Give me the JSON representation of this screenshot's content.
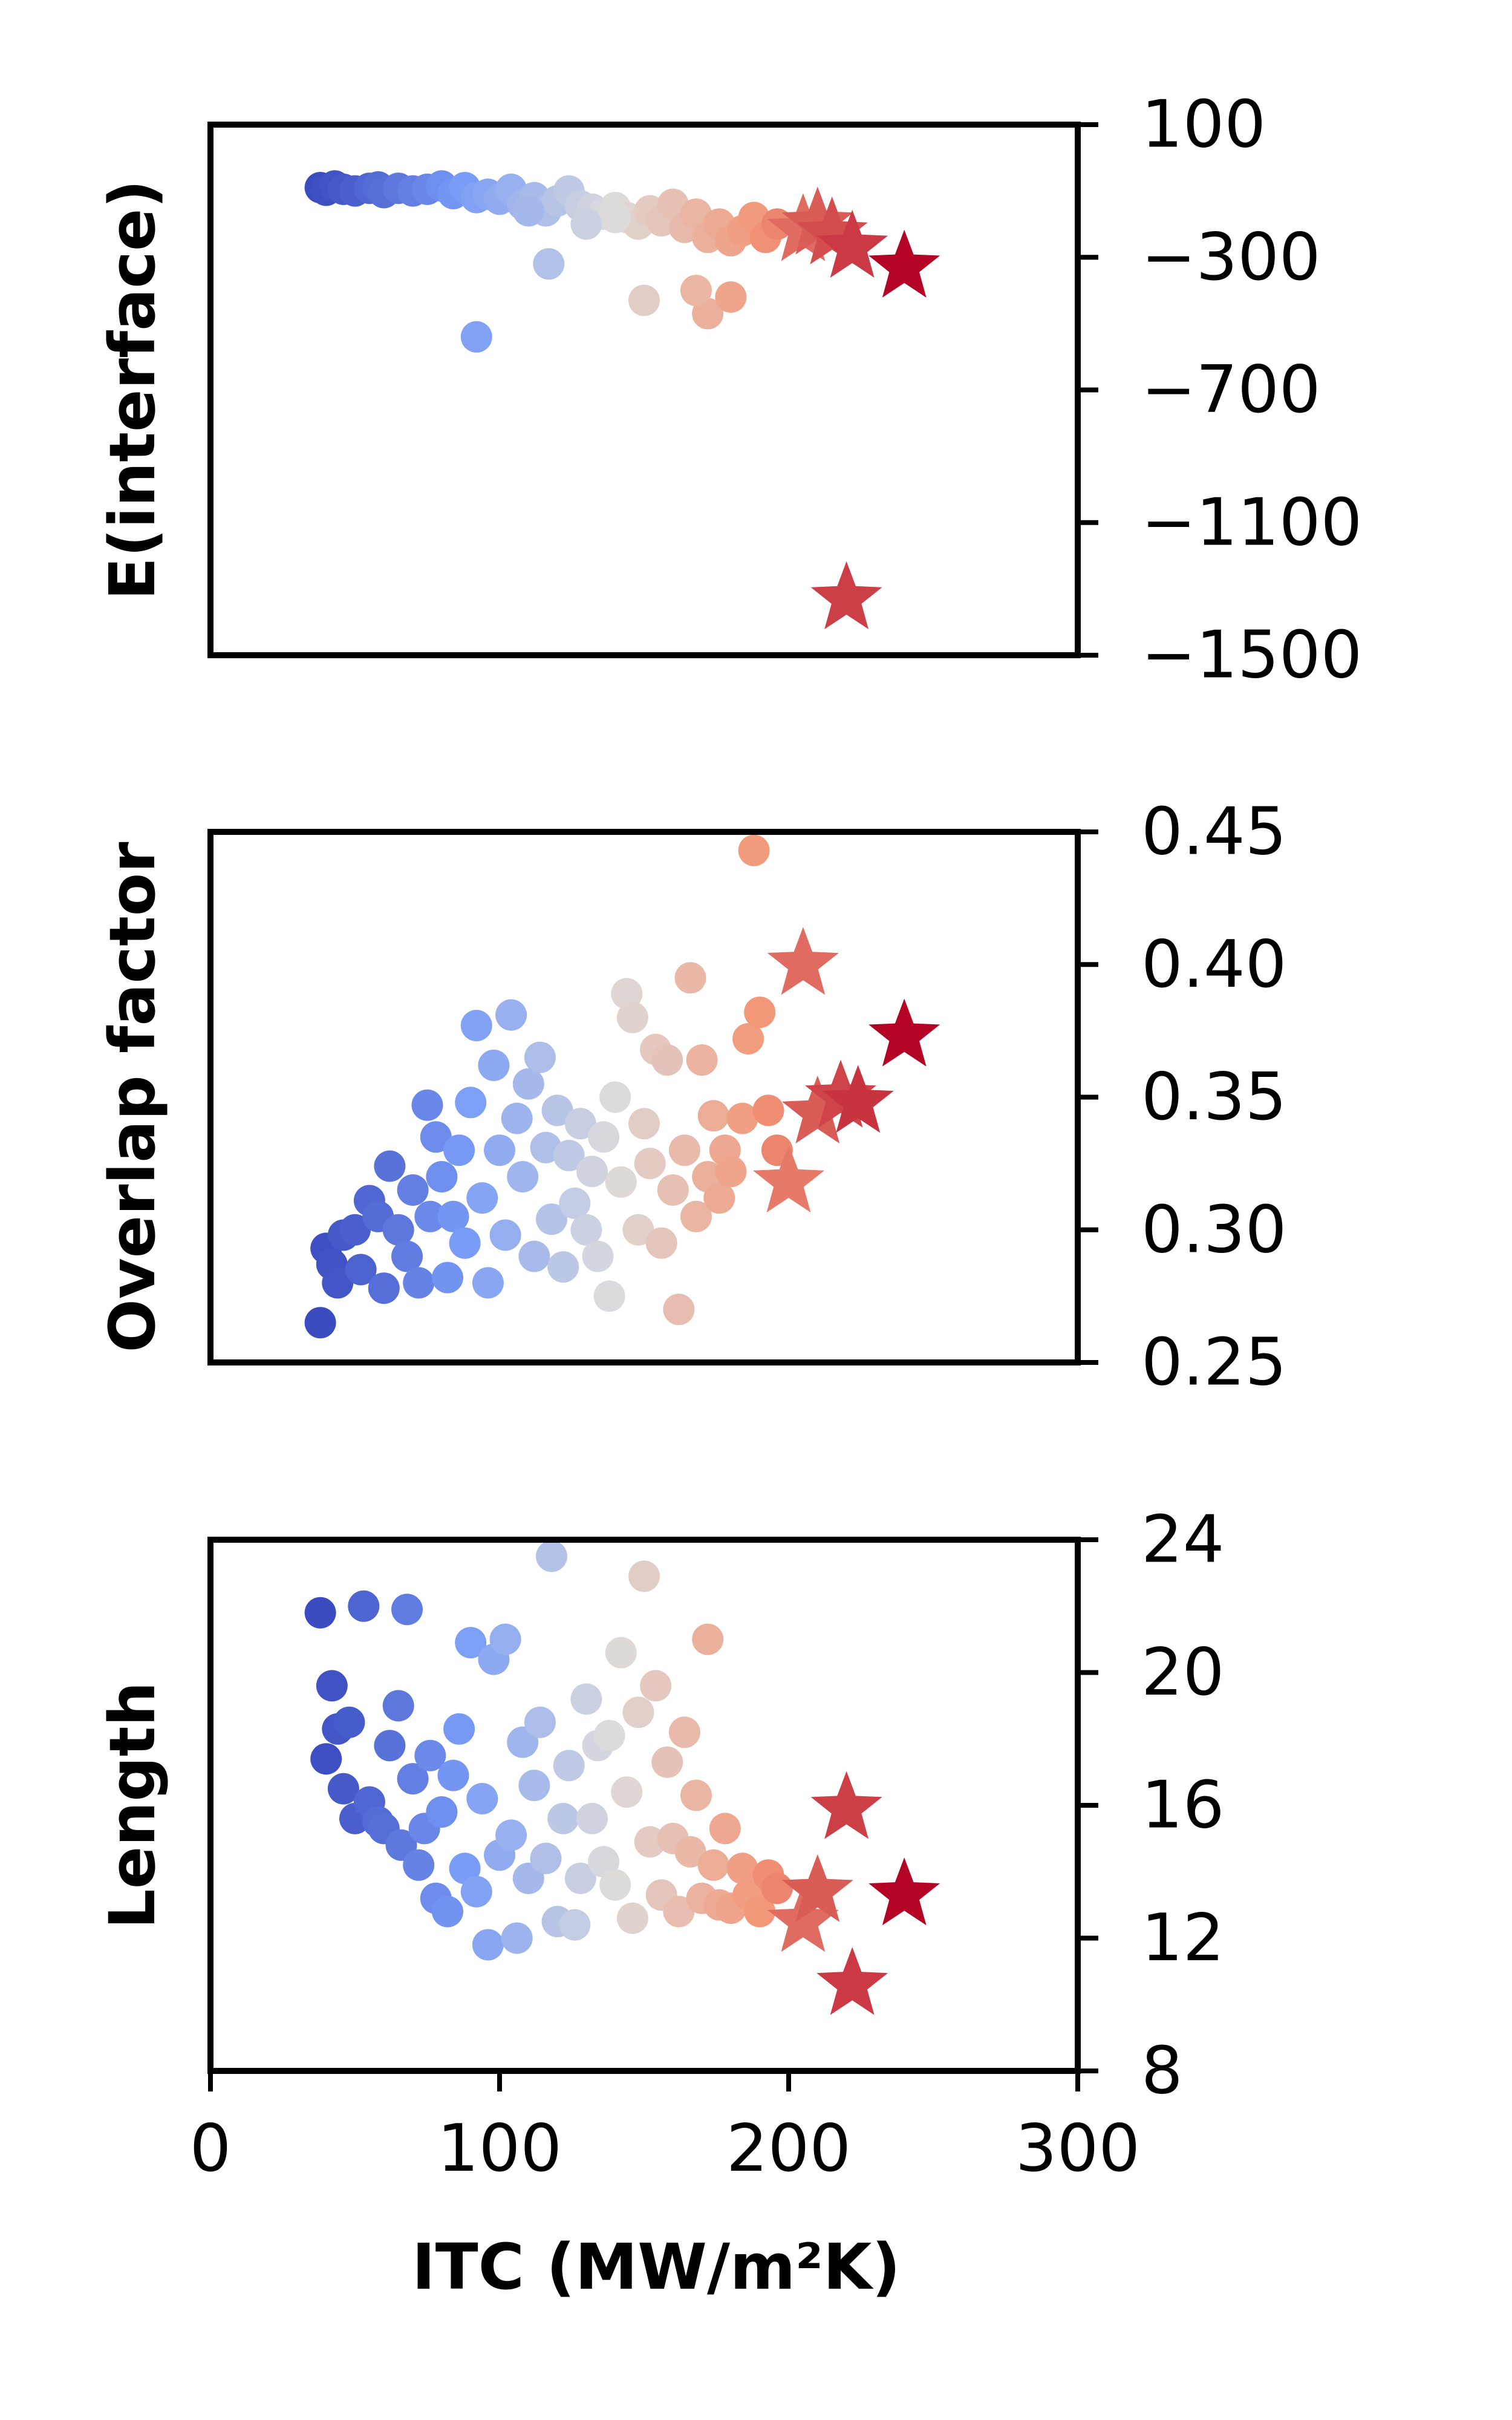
{
  "colors": {
    "low": "#3b4cc0",
    "mid": "#dddcdc",
    "high": "#b40426",
    "frame": "#000000"
  },
  "xaxis": {
    "label": "ITC (MW/m²K)",
    "range": [
      0,
      300
    ],
    "ticks": [
      0,
      100,
      200,
      300
    ],
    "tick_labels": [
      "0",
      "100",
      "200",
      "300"
    ]
  },
  "chart_data": [
    {
      "type": "scatter",
      "ylabel": "E(interface)",
      "ylim": [
        -1500,
        100
      ],
      "yticks": [
        100,
        -300,
        -700,
        -1100,
        -1500
      ],
      "ytick_labels": [
        "100",
        "−300",
        "−700",
        "−1100",
        "−1500"
      ],
      "y_axis_side": "right",
      "grid": false,
      "points": [
        [
          38,
          -90
        ],
        [
          40,
          -98
        ],
        [
          43,
          -85
        ],
        [
          46,
          -95
        ],
        [
          50,
          -100
        ],
        [
          55,
          -92
        ],
        [
          58,
          -88
        ],
        [
          60,
          -105
        ],
        [
          65,
          -92
        ],
        [
          70,
          -100
        ],
        [
          75,
          -95
        ],
        [
          80,
          -85
        ],
        [
          84,
          -108
        ],
        [
          88,
          -90
        ],
        [
          92,
          -120
        ],
        [
          96,
          -110
        ],
        [
          100,
          -125
        ],
        [
          104,
          -95
        ],
        [
          108,
          -140
        ],
        [
          112,
          -120
        ],
        [
          116,
          -160
        ],
        [
          120,
          -130
        ],
        [
          124,
          -100
        ],
        [
          128,
          -145
        ],
        [
          132,
          -155
        ],
        [
          136,
          -170
        ],
        [
          140,
          -150
        ],
        [
          144,
          -180
        ],
        [
          148,
          -200
        ],
        [
          152,
          -160
        ],
        [
          156,
          -190
        ],
        [
          160,
          -140
        ],
        [
          164,
          -210
        ],
        [
          168,
          -170
        ],
        [
          172,
          -240
        ],
        [
          176,
          -200
        ],
        [
          180,
          -250
        ],
        [
          184,
          -220
        ],
        [
          188,
          -180
        ],
        [
          192,
          -240
        ],
        [
          196,
          -200
        ],
        [
          117,
          -320
        ],
        [
          150,
          -430
        ],
        [
          172,
          -470
        ],
        [
          180,
          -420
        ],
        [
          168,
          -400
        ],
        [
          92,
          -540
        ],
        [
          140,
          -180
        ],
        [
          130,
          -200
        ],
        [
          110,
          -160
        ]
      ],
      "stars": [
        [
          205,
          -220
        ],
        [
          210,
          -200
        ],
        [
          215,
          -230
        ],
        [
          222,
          -270
        ],
        [
          240,
          -330
        ],
        [
          220,
          -1330
        ]
      ]
    },
    {
      "type": "scatter",
      "ylabel": "Overlap factor",
      "ylim": [
        0.25,
        0.45
      ],
      "yticks": [
        0.45,
        0.4,
        0.35,
        0.3,
        0.25
      ],
      "ytick_labels": [
        "0.45",
        "0.40",
        "0.35",
        "0.30",
        "0.25"
      ],
      "y_axis_side": "right",
      "grid": false,
      "points": [
        [
          38,
          0.265
        ],
        [
          40,
          0.293
        ],
        [
          42,
          0.287
        ],
        [
          44,
          0.28
        ],
        [
          46,
          0.298
        ],
        [
          50,
          0.3
        ],
        [
          52,
          0.285
        ],
        [
          55,
          0.311
        ],
        [
          58,
          0.305
        ],
        [
          60,
          0.278
        ],
        [
          62,
          0.324
        ],
        [
          65,
          0.3
        ],
        [
          68,
          0.29
        ],
        [
          70,
          0.315
        ],
        [
          72,
          0.28
        ],
        [
          75,
          0.347
        ],
        [
          76,
          0.305
        ],
        [
          78,
          0.335
        ],
        [
          80,
          0.32
        ],
        [
          82,
          0.282
        ],
        [
          84,
          0.305
        ],
        [
          86,
          0.33
        ],
        [
          88,
          0.295
        ],
        [
          90,
          0.348
        ],
        [
          92,
          0.377
        ],
        [
          94,
          0.312
        ],
        [
          96,
          0.28
        ],
        [
          98,
          0.362
        ],
        [
          100,
          0.33
        ],
        [
          102,
          0.298
        ],
        [
          104,
          0.381
        ],
        [
          106,
          0.342
        ],
        [
          108,
          0.32
        ],
        [
          110,
          0.355
        ],
        [
          112,
          0.29
        ],
        [
          114,
          0.365
        ],
        [
          116,
          0.331
        ],
        [
          118,
          0.304
        ],
        [
          120,
          0.345
        ],
        [
          122,
          0.286
        ],
        [
          124,
          0.328
        ],
        [
          126,
          0.31
        ],
        [
          128,
          0.34
        ],
        [
          130,
          0.3
        ],
        [
          132,
          0.322
        ],
        [
          134,
          0.29
        ],
        [
          136,
          0.335
        ],
        [
          138,
          0.275
        ],
        [
          140,
          0.35
        ],
        [
          142,
          0.318
        ],
        [
          144,
          0.389
        ],
        [
          146,
          0.38
        ],
        [
          148,
          0.3
        ],
        [
          150,
          0.34
        ],
        [
          152,
          0.325
        ],
        [
          154,
          0.368
        ],
        [
          156,
          0.295
        ],
        [
          158,
          0.364
        ],
        [
          160,
          0.315
        ],
        [
          162,
          0.27
        ],
        [
          164,
          0.33
        ],
        [
          166,
          0.395
        ],
        [
          168,
          0.305
        ],
        [
          170,
          0.364
        ],
        [
          172,
          0.32
        ],
        [
          174,
          0.343
        ],
        [
          176,
          0.312
        ],
        [
          178,
          0.33
        ],
        [
          180,
          0.322
        ],
        [
          184,
          0.342
        ],
        [
          186,
          0.372
        ],
        [
          188,
          0.443
        ],
        [
          190,
          0.382
        ],
        [
          193,
          0.345
        ],
        [
          196,
          0.33
        ]
      ],
      "stars": [
        [
          200,
          0.318
        ],
        [
          205,
          0.4
        ],
        [
          210,
          0.344
        ],
        [
          218,
          0.35
        ],
        [
          224,
          0.348
        ],
        [
          240,
          0.373
        ]
      ]
    },
    {
      "type": "scatter",
      "ylabel": "Length",
      "ylim": [
        8,
        24
      ],
      "yticks": [
        24,
        20,
        16,
        12,
        8
      ],
      "ytick_labels": [
        "24",
        "20",
        "16",
        "12",
        "8"
      ],
      "y_axis_side": "right",
      "grid": false,
      "points": [
        [
          38,
          21.8
        ],
        [
          40,
          17.4
        ],
        [
          42,
          19.6
        ],
        [
          44,
          18.3
        ],
        [
          46,
          16.5
        ],
        [
          48,
          18.5
        ],
        [
          50,
          15.6
        ],
        [
          53,
          22
        ],
        [
          55,
          16.1
        ],
        [
          58,
          15.5
        ],
        [
          60,
          15.3
        ],
        [
          62,
          17.8
        ],
        [
          65,
          19.0
        ],
        [
          66,
          14.8
        ],
        [
          68,
          21.9
        ],
        [
          70,
          16.8
        ],
        [
          72,
          14.2
        ],
        [
          74,
          15.3
        ],
        [
          76,
          17.5
        ],
        [
          78,
          13.2
        ],
        [
          80,
          15.8
        ],
        [
          82,
          12.8
        ],
        [
          84,
          16.9
        ],
        [
          86,
          18.3
        ],
        [
          88,
          14.1
        ],
        [
          90,
          20.9
        ],
        [
          92,
          13.4
        ],
        [
          94,
          16.2
        ],
        [
          96,
          11.8
        ],
        [
          98,
          20.4
        ],
        [
          100,
          14.5
        ],
        [
          102,
          21.0
        ],
        [
          104,
          15.1
        ],
        [
          106,
          12.0
        ],
        [
          108,
          17.9
        ],
        [
          110,
          13.8
        ],
        [
          112,
          16.6
        ],
        [
          114,
          18.5
        ],
        [
          116,
          14.4
        ],
        [
          118,
          23.5
        ],
        [
          120,
          12.5
        ],
        [
          122,
          15.6
        ],
        [
          124,
          17.2
        ],
        [
          126,
          12.4
        ],
        [
          128,
          13.8
        ],
        [
          130,
          19.2
        ],
        [
          132,
          15.6
        ],
        [
          134,
          17.8
        ],
        [
          136,
          14.3
        ],
        [
          138,
          18.1
        ],
        [
          140,
          13.6
        ],
        [
          142,
          20.6
        ],
        [
          144,
          16.4
        ],
        [
          146,
          12.6
        ],
        [
          148,
          18.8
        ],
        [
          150,
          22.9
        ],
        [
          152,
          14.9
        ],
        [
          154,
          19.6
        ],
        [
          156,
          13.3
        ],
        [
          158,
          17.3
        ],
        [
          160,
          15.0
        ],
        [
          162,
          12.8
        ],
        [
          164,
          18.2
        ],
        [
          166,
          14.6
        ],
        [
          168,
          16.3
        ],
        [
          170,
          13.2
        ],
        [
          172,
          21.0
        ],
        [
          174,
          14.2
        ],
        [
          176,
          13.0
        ],
        [
          178,
          15.3
        ],
        [
          180,
          12.9
        ],
        [
          184,
          14.1
        ],
        [
          186,
          13.3
        ],
        [
          190,
          12.8
        ],
        [
          193,
          13.9
        ],
        [
          196,
          13.5
        ]
      ],
      "stars": [
        [
          205,
          12.5
        ],
        [
          210,
          13.4
        ],
        [
          220,
          15.9
        ],
        [
          222,
          10.6
        ],
        [
          240,
          13.3
        ]
      ]
    }
  ]
}
